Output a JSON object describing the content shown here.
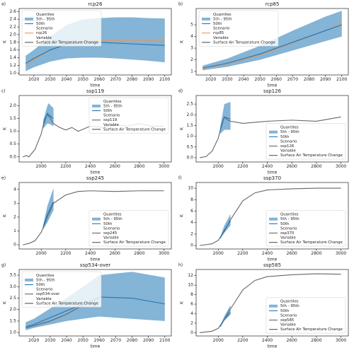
{
  "chart_data": [
    {
      "type": "line",
      "panel_label": "a)",
      "title": "rcp26",
      "xlabel": "time",
      "ylabel": "K",
      "xlim": [
        2011,
        2104
      ],
      "ylim": [
        0.95,
        2.68
      ],
      "xticks": [
        2020,
        2030,
        2040,
        2050,
        2060,
        2070,
        2080,
        2090,
        2100
      ],
      "yticks": [
        {
          "value": 1,
          "label": "1.0"
        },
        1.2,
        1.4,
        1.6,
        1.8,
        {
          "value": 2,
          "label": "2.0"
        },
        2.2,
        2.4,
        2.6
      ],
      "legend_loc": "upper left",
      "legend_headers": [
        "Quantiles",
        "Scenario",
        "Variable"
      ],
      "band": {
        "name": "5th - 95th",
        "color": "#1f77b4",
        "x": [
          2015,
          2020,
          2030,
          2040,
          2050,
          2060,
          2070,
          2080,
          2090,
          2100
        ],
        "lower": [
          1.05,
          1.15,
          1.3,
          1.38,
          1.4,
          1.4,
          1.38,
          1.35,
          1.32,
          1.28
        ],
        "upper": [
          1.45,
          1.6,
          1.95,
          2.25,
          2.4,
          2.43,
          2.45,
          2.45,
          2.43,
          2.42
        ]
      },
      "series": [
        {
          "name": "50th",
          "color": "#1f77b4",
          "x": [
            2015,
            2020,
            2030,
            2040,
            2050,
            2060,
            2070,
            2080,
            2090,
            2100
          ],
          "values": [
            1.25,
            1.38,
            1.6,
            1.75,
            1.8,
            1.8,
            1.78,
            1.76,
            1.74,
            1.72
          ]
        },
        {
          "name": "rcp26",
          "color": "#e8955a",
          "x": [
            2015,
            2020,
            2030,
            2040,
            2050,
            2060,
            2070,
            2080,
            2090,
            2100
          ],
          "values": [
            1.2,
            1.35,
            1.6,
            1.76,
            1.83,
            1.84,
            1.84,
            1.84,
            1.84,
            1.84
          ]
        }
      ],
      "variable": {
        "name": "Surface Air Temperature Change",
        "color": "#555555"
      }
    },
    {
      "type": "line",
      "panel_label": "b)",
      "title": "rcp85",
      "xlabel": "time",
      "ylabel": "K",
      "xlim": [
        2011,
        2104
      ],
      "ylim": [
        0.7,
        6.4
      ],
      "xticks": [
        2020,
        2030,
        2040,
        2050,
        2060,
        2070,
        2080,
        2090,
        2100
      ],
      "yticks": [
        1,
        2,
        3,
        4,
        5
      ],
      "legend_loc": "upper left",
      "legend_headers": [
        "Quantiles",
        "Scenario",
        "Variable"
      ],
      "band": {
        "name": "5th - 95th",
        "color": "#1f77b4",
        "x": [
          2015,
          2030,
          2050,
          2070,
          2090,
          2100
        ],
        "lower": [
          1.1,
          1.4,
          2.0,
          2.8,
          3.6,
          4.0
        ],
        "upper": [
          1.5,
          2.1,
          3.2,
          4.5,
          5.7,
          6.2
        ]
      },
      "series": [
        {
          "name": "50th",
          "color": "#1f77b4",
          "x": [
            2015,
            2030,
            2050,
            2070,
            2090,
            2100
          ],
          "values": [
            1.3,
            1.7,
            2.5,
            3.5,
            4.5,
            5.0
          ]
        },
        {
          "name": "rcp85",
          "color": "#e8955a",
          "x": [
            2015,
            2030,
            2050,
            2070,
            2090,
            2100
          ],
          "values": [
            1.25,
            1.65,
            2.4,
            3.45,
            4.5,
            5.1
          ]
        }
      ],
      "variable": {
        "name": "Surface Air Temperature Change",
        "color": "#555555"
      }
    },
    {
      "type": "line",
      "panel_label": "c)",
      "title": "ssp119",
      "xlabel": "time",
      "ylabel": "K",
      "xlim": [
        1820,
        3060
      ],
      "ylim": [
        -0.2,
        2.4
      ],
      "xticks": [
        2000,
        2200,
        2400,
        2600,
        2800,
        3000
      ],
      "yticks": [
        {
          "value": 0,
          "label": "0.0"
        },
        0.5,
        {
          "value": 1,
          "label": "1.0"
        },
        1.5,
        {
          "value": 2,
          "label": "2.0"
        }
      ],
      "legend_loc": "upper right",
      "legend_headers": [
        "Quantiles",
        "Scenario",
        "Variable"
      ],
      "band": {
        "name": "5th - 95th",
        "color": "#1f77b4",
        "x": [
          2015,
          2050,
          2060,
          2100
        ],
        "lower": [
          1.1,
          1.3,
          1.3,
          1.2
        ],
        "upper": [
          1.4,
          2.0,
          2.1,
          1.9
        ]
      },
      "series": [
        {
          "name": "50th",
          "color": "#1f77b4",
          "x": [
            2015,
            2050,
            2060,
            2100
          ],
          "values": [
            1.2,
            1.7,
            1.65,
            1.5
          ]
        },
        {
          "name": "ssp119",
          "color": "#666666",
          "x": [
            1850,
            1880,
            1900,
            1950,
            2000,
            2030,
            2050,
            2070,
            2100,
            2150,
            2200,
            2250,
            2300,
            2400,
            2500,
            2600,
            2700,
            2800,
            2900,
            3000
          ],
          "values": [
            0,
            0.05,
            0,
            0.3,
            0.9,
            1.5,
            1.65,
            1.55,
            1.3,
            1.15,
            1.05,
            1.15,
            1.0,
            1.2,
            1.15,
            1.25,
            1.2,
            1.3,
            1.2,
            1.2
          ]
        }
      ],
      "variable": {
        "name": "Surface Air Temperature Change",
        "color": "#555555"
      }
    },
    {
      "type": "line",
      "panel_label": "d)",
      "title": "ssp126",
      "xlabel": "time",
      "ylabel": "K",
      "xlim": [
        1820,
        3060
      ],
      "ylim": [
        -0.2,
        2.9
      ],
      "xticks": [
        2000,
        2200,
        2400,
        2600,
        2800,
        3000
      ],
      "yticks": [
        {
          "value": 0,
          "label": "0.0"
        },
        0.5,
        {
          "value": 1,
          "label": "1.0"
        },
        1.5,
        {
          "value": 2,
          "label": "2.0"
        },
        2.5
      ],
      "legend_loc": "lower right",
      "legend_headers": [
        "Quantiles",
        "Scenario",
        "Variable"
      ],
      "band": {
        "name": "5th - 95th",
        "color": "#1f77b4",
        "x": [
          2015,
          2050,
          2100
        ],
        "lower": [
          1.1,
          1.3,
          1.3
        ],
        "upper": [
          1.4,
          2.5,
          2.6
        ]
      },
      "series": [
        {
          "name": "50th",
          "color": "#1f77b4",
          "x": [
            2015,
            2050,
            2100
          ],
          "values": [
            1.25,
            1.9,
            1.8
          ]
        },
        {
          "name": "ssp126",
          "color": "#666666",
          "x": [
            1850,
            1900,
            1950,
            2000,
            2030,
            2050,
            2080,
            2100,
            2200,
            2400,
            2600,
            2800,
            3000
          ],
          "values": [
            0,
            0.05,
            0.3,
            0.9,
            1.6,
            1.9,
            1.75,
            1.7,
            1.6,
            1.7,
            1.75,
            1.7,
            1.9
          ]
        }
      ],
      "variable": {
        "name": "Surface Air Temperature Change",
        "color": "#555555"
      }
    },
    {
      "type": "line",
      "panel_label": "e)",
      "title": "ssp245",
      "xlabel": "time",
      "ylabel": "K",
      "xlim": [
        1820,
        3060
      ],
      "ylim": [
        -0.3,
        4.5
      ],
      "xticks": [
        2000,
        2200,
        2400,
        2600,
        2800,
        3000
      ],
      "yticks": [
        0,
        1,
        2,
        3,
        4
      ],
      "legend_loc": "lower right",
      "legend_headers": [
        "Quantiles",
        "Scenario",
        "Variable"
      ],
      "band": {
        "name": "5th - 95th",
        "color": "#1f77b4",
        "x": [
          2015,
          2050,
          2100
        ],
        "lower": [
          1.1,
          1.6,
          2.5
        ],
        "upper": [
          1.4,
          2.8,
          4.1
        ]
      },
      "series": [
        {
          "name": "50th",
          "color": "#1f77b4",
          "x": [
            2015,
            2050,
            2100
          ],
          "values": [
            1.25,
            2.2,
            3.1
          ]
        },
        {
          "name": "ssp245",
          "color": "#666666",
          "x": [
            1850,
            1900,
            1950,
            2000,
            2050,
            2100,
            2200,
            2300,
            2400,
            2600,
            2800,
            3000
          ],
          "values": [
            0,
            0.1,
            0.3,
            0.9,
            2.0,
            3.0,
            3.6,
            3.85,
            3.9,
            3.85,
            3.9,
            3.9
          ]
        }
      ],
      "variable": {
        "name": "Surface Air Temperature Change",
        "color": "#555555"
      }
    },
    {
      "type": "line",
      "panel_label": "f)",
      "title": "ssp370",
      "xlabel": "time",
      "ylabel": "K",
      "xlim": [
        1820,
        3060
      ],
      "ylim": [
        -0.6,
        11
      ],
      "xticks": [
        2000,
        2200,
        2400,
        2600,
        2800,
        3000
      ],
      "yticks": [
        0,
        2,
        4,
        6,
        8,
        10
      ],
      "legend_loc": "lower right",
      "legend_headers": [
        "Quantiles",
        "Scenario",
        "Variable"
      ],
      "band": {
        "name": "5th - 95th",
        "color": "#1f77b4",
        "x": [
          2015,
          2050,
          2100
        ],
        "lower": [
          1.1,
          2.2,
          3.5
        ],
        "upper": [
          1.4,
          3.5,
          5.5
        ]
      },
      "series": [
        {
          "name": "50th",
          "color": "#1f77b4",
          "x": [
            2015,
            2050,
            2100
          ],
          "values": [
            1.25,
            2.7,
            4.3
          ]
        },
        {
          "name": "ssp370",
          "color": "#666666",
          "x": [
            1850,
            1950,
            2000,
            2050,
            2100,
            2200,
            2300,
            2400,
            2600,
            2800,
            3000
          ],
          "values": [
            0,
            0.3,
            0.9,
            2.5,
            4.5,
            7.8,
            9.2,
            9.7,
            9.9,
            10.0,
            10.0
          ]
        }
      ],
      "variable": {
        "name": "Surface Air Temperature Change",
        "color": "#555555"
      }
    },
    {
      "type": "line",
      "panel_label": "g)",
      "title": "ssp534-over",
      "xlabel": "time",
      "ylabel": "K",
      "xlim": [
        2011,
        2104
      ],
      "ylim": [
        0.85,
        3.75
      ],
      "xticks": [
        2020,
        2030,
        2040,
        2050,
        2060,
        2070,
        2080,
        2090,
        2100
      ],
      "yticks": [
        {
          "value": 1,
          "label": "1.0"
        },
        1.5,
        {
          "value": 2,
          "label": "2.0"
        },
        2.5,
        {
          "value": 3,
          "label": "3.0"
        },
        3.5
      ],
      "legend_loc": "upper left",
      "legend_headers": [
        "Quantiles",
        "Scenario",
        "Variable"
      ],
      "band": {
        "name": "5th - 95th",
        "color": "#1f77b4",
        "x": [
          2015,
          2020,
          2040,
          2060,
          2080,
          2100
        ],
        "lower": [
          1.1,
          1.2,
          1.5,
          1.7,
          1.6,
          1.5
        ],
        "upper": [
          1.45,
          1.6,
          2.5,
          3.5,
          3.65,
          3.4
        ]
      },
      "series": [
        {
          "name": "50th",
          "color": "#1f77b4",
          "x": [
            2015,
            2020,
            2040,
            2060,
            2080,
            2100
          ],
          "values": [
            1.25,
            1.35,
            1.95,
            2.55,
            2.5,
            2.25
          ]
        },
        {
          "name": "ssp534-over",
          "color": "#666666",
          "x": [
            2015,
            2020,
            2030,
            2040,
            2050,
            2060
          ],
          "values": [
            1.2,
            1.3,
            1.5,
            1.8,
            2.2,
            2.5
          ]
        }
      ],
      "variable": {
        "name": "Surface Air Temperature Change",
        "color": "#555555"
      }
    },
    {
      "type": "line",
      "panel_label": "h)",
      "title": "ssp585",
      "xlabel": "time",
      "ylabel": "K",
      "xlim": [
        1820,
        3060
      ],
      "ylim": [
        -0.7,
        13.3
      ],
      "xticks": [
        2000,
        2200,
        2400,
        2600,
        2800,
        3000
      ],
      "yticks": [
        0,
        2,
        4,
        6,
        8,
        10,
        12
      ],
      "legend_loc": "lower right",
      "legend_headers": [
        "Quantiles",
        "Scenario",
        "Variable"
      ],
      "band": {
        "name": "5th - 95th",
        "color": "#1f77b4",
        "x": [
          2015,
          2050,
          2100
        ],
        "lower": [
          1.1,
          2.5,
          3.8
        ],
        "upper": [
          1.4,
          3.5,
          5.8
        ]
      },
      "series": [
        {
          "name": "50th",
          "color": "#1f77b4",
          "x": [
            2015,
            2050,
            2100
          ],
          "values": [
            1.25,
            2.8,
            4.3
          ]
        },
        {
          "name": "ssp585",
          "color": "#666666",
          "x": [
            1850,
            1950,
            2000,
            2050,
            2100,
            2200,
            2300,
            2400,
            2600,
            2800,
            3000
          ],
          "values": [
            0,
            0.3,
            0.9,
            2.8,
            5,
            9,
            11,
            11.8,
            12.2,
            12.4,
            12.3
          ]
        }
      ],
      "variable": {
        "name": "Surface Air Temperature Change",
        "color": "#555555"
      }
    }
  ]
}
